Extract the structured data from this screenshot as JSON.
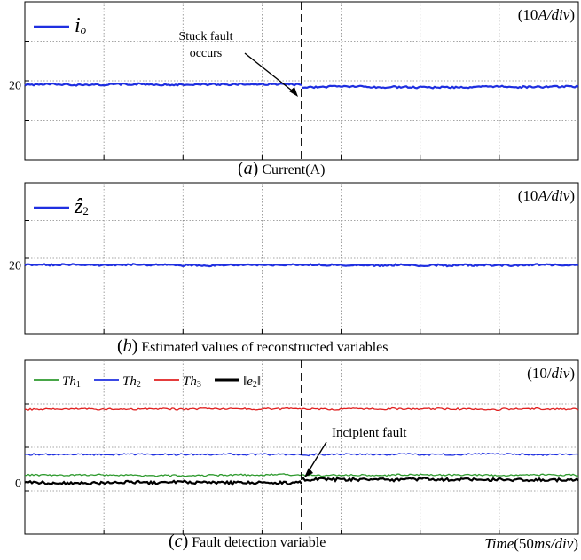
{
  "chart_data": [
    {
      "type": "line",
      "panel": "a",
      "caption_letter": "a",
      "caption_text": "Current(A)",
      "scale_label_pre": "(10",
      "scale_label_unit": "A/div",
      "scale_label_post": ")",
      "legend": [
        {
          "symbol": "i",
          "sub": "o",
          "color": "#1f2fe0"
        }
      ],
      "ytick_label": "20",
      "grid": true,
      "annotation": {
        "text_line1": "Stuck fault",
        "text_line2": "occurs"
      },
      "fault_time_fraction": 0.5,
      "series": [
        {
          "color": "#1f2fe0",
          "segments": [
            {
              "x": [
                0,
                0.5
              ],
              "level": 0.525
            },
            {
              "x": [
                0.5,
                1.0
              ],
              "level": 0.54
            }
          ]
        }
      ]
    },
    {
      "type": "line",
      "panel": "b",
      "caption_letter": "b",
      "caption_text": "Estimated values of reconstructed variables",
      "scale_label_pre": "(10",
      "scale_label_unit": "A/div",
      "scale_label_post": ")",
      "legend": [
        {
          "symbol": "ẑ",
          "sub": "2",
          "color": "#1f2fe0"
        }
      ],
      "ytick_label": "20",
      "grid": true,
      "series": [
        {
          "color": "#1f2fe0",
          "segments": [
            {
              "x": [
                0,
                1.0
              ],
              "level": 0.545
            }
          ]
        }
      ]
    },
    {
      "type": "line",
      "panel": "c",
      "caption_letter": "c",
      "caption_text": "Fault detection variable",
      "scale_label_pre": "(10/",
      "scale_label_unit": "div",
      "scale_label_post": ")",
      "legend": [
        {
          "symbol": "Th",
          "sub": "1",
          "color": "#2e9a2e"
        },
        {
          "symbol": "Th",
          "sub": "2",
          "color": "#1f2fe0"
        },
        {
          "symbol": "Th",
          "sub": "3",
          "color": "#e02020"
        },
        {
          "symbol": "‖e",
          "sub": "2",
          "post": "‖",
          "color": "#000000"
        }
      ],
      "ytick_label": "0",
      "grid": true,
      "annotation": {
        "text_line1": "Incipient fault"
      },
      "fault_time_fraction": 0.5,
      "xlabel_italic": "Time",
      "xlabel_rest": "(50",
      "xlabel_unit": "ms/div",
      "xlabel_close": ")",
      "series": [
        {
          "name": "Th1",
          "color": "#2e9a2e",
          "segments": [
            {
              "x": [
                0,
                1.0
              ],
              "level": 0.66
            }
          ]
        },
        {
          "name": "Th2",
          "color": "#1f2fe0",
          "segments": [
            {
              "x": [
                0,
                1.0
              ],
              "level": 0.54
            }
          ]
        },
        {
          "name": "Th3",
          "color": "#e02020",
          "segments": [
            {
              "x": [
                0,
                1.0
              ],
              "level": 0.28
            }
          ]
        },
        {
          "name": "||e2||",
          "color": "#000000",
          "segments": [
            {
              "x": [
                0,
                0.5
              ],
              "level": 0.705
            },
            {
              "x": [
                0.5,
                1.0
              ],
              "level": 0.685
            }
          ]
        }
      ]
    }
  ]
}
